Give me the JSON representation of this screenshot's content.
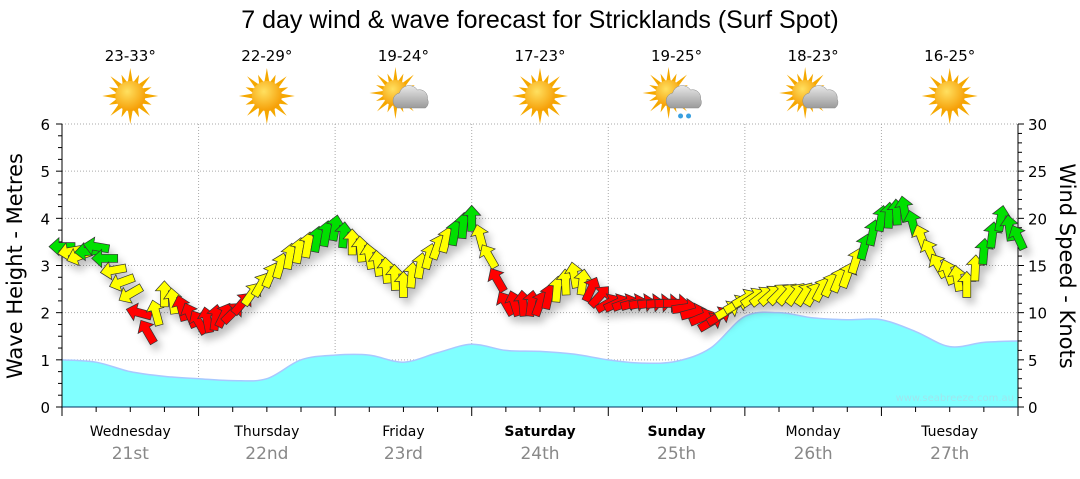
{
  "chart_data": {
    "type": "area",
    "title": "7 day wind & wave forecast for Stricklands (Surf Spot)",
    "ylabel_left": "Wave Height - Metres",
    "ylabel_right": "Wind Speed - Knots",
    "ylim_left": [
      0,
      6
    ],
    "ylim_right": [
      0,
      30
    ],
    "yticks_left": [
      "0",
      "1",
      "2",
      "3",
      "4",
      "5",
      "6"
    ],
    "yticks_right": [
      "0",
      "5",
      "10",
      "15",
      "20",
      "25",
      "30"
    ],
    "grid": true,
    "watermark": "www.seabreeze.com.au",
    "days": [
      {
        "day": "Wednesday",
        "date": "21st",
        "temp": "23-33°",
        "weather": "sunny",
        "weekend": false
      },
      {
        "day": "Thursday",
        "date": "22nd",
        "temp": "22-29°",
        "weather": "sunny",
        "weekend": false
      },
      {
        "day": "Friday",
        "date": "23rd",
        "temp": "19-24°",
        "weather": "partly-cloudy",
        "weekend": false
      },
      {
        "day": "Saturday",
        "date": "24th",
        "temp": "17-23°",
        "weather": "sunny",
        "weekend": true
      },
      {
        "day": "Sunday",
        "date": "25th",
        "temp": "19-25°",
        "weather": "showers",
        "weekend": true
      },
      {
        "day": "Monday",
        "date": "26th",
        "temp": "18-23°",
        "weather": "partly-cloudy",
        "weekend": false
      },
      {
        "day": "Tuesday",
        "date": "27th",
        "temp": "16-25°",
        "weather": "sunny",
        "weekend": false
      }
    ],
    "wave_height_m": {
      "hours": [
        0,
        6,
        12,
        18,
        24,
        30,
        36,
        42,
        48,
        54,
        60,
        66,
        72,
        78,
        84,
        90,
        96,
        102,
        108,
        114,
        120,
        126,
        132,
        138,
        144,
        150,
        156,
        162,
        168
      ],
      "values": [
        1.0,
        0.95,
        0.75,
        0.65,
        0.6,
        0.56,
        0.6,
        1.0,
        1.1,
        1.1,
        0.95,
        1.15,
        1.33,
        1.2,
        1.18,
        1.12,
        1.0,
        0.93,
        0.97,
        1.25,
        1.92,
        2.0,
        1.89,
        1.85,
        1.85,
        1.6,
        1.28,
        1.37,
        1.4
      ]
    },
    "wind": {
      "hours": [
        0,
        3,
        6,
        12,
        15,
        18,
        24,
        30,
        35,
        40,
        48,
        54,
        60,
        66,
        72,
        75,
        78,
        84,
        90,
        96,
        102,
        108,
        114,
        120,
        126,
        132,
        138,
        144,
        148,
        154,
        159,
        165,
        168
      ],
      "knots": [
        17,
        16,
        17,
        12,
        8,
        12,
        9,
        10,
        13,
        16,
        19,
        16,
        13,
        17,
        20,
        16,
        11,
        11,
        14,
        11,
        11,
        11,
        9,
        11.5,
        12,
        12,
        14,
        20,
        21,
        15,
        13,
        20,
        18
      ],
      "direction_deg": [
        270,
        250,
        280,
        240,
        330,
        0,
        330,
        45,
        30,
        10,
        10,
        350,
        0,
        20,
        0,
        330,
        330,
        20,
        350,
        60,
        80,
        90,
        60,
        60,
        45,
        30,
        20,
        10,
        350,
        330,
        0,
        10,
        335
      ],
      "color": [
        "green",
        "yellow",
        "green",
        "yellow",
        "red",
        "yellow",
        "red",
        "red",
        "yellow",
        "yellow",
        "green",
        "yellow",
        "yellow",
        "yellow",
        "green",
        "yellow",
        "red",
        "red",
        "yellow",
        "red",
        "red",
        "red",
        "red",
        "yellow",
        "yellow",
        "yellow",
        "yellow",
        "green",
        "green",
        "yellow",
        "yellow",
        "green",
        "green"
      ]
    },
    "colors": {
      "green": "#00e000",
      "yellow": "#ffff00",
      "red": "#ff0000",
      "wave_fill": "#80ffff",
      "wave_stroke": "#a8c8ff",
      "sun": "#ffb000",
      "cloud": "#b8b8b8"
    }
  }
}
